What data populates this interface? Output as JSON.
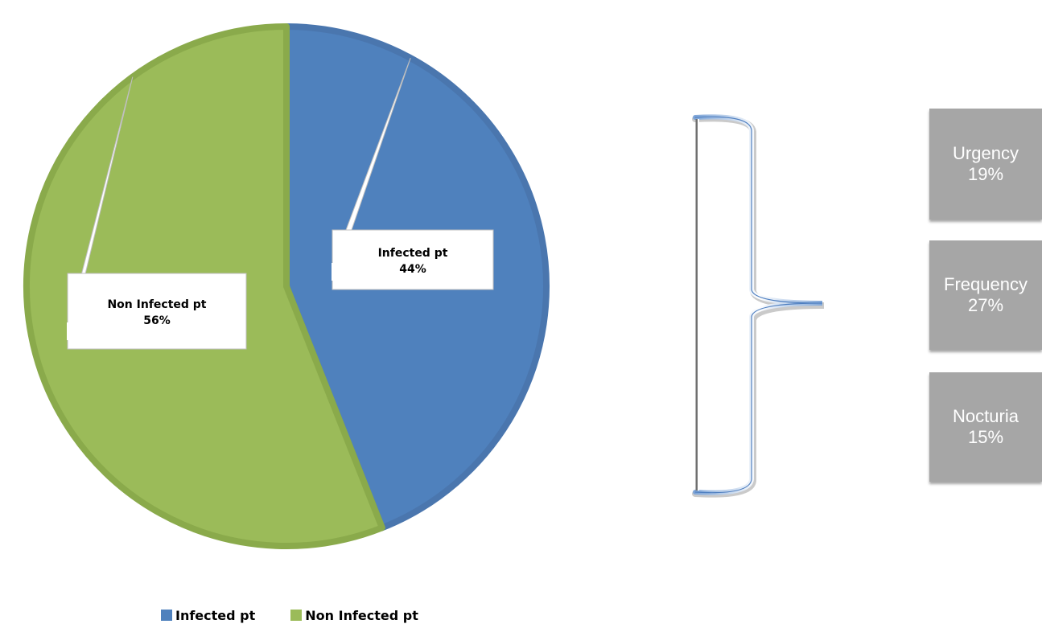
{
  "chart_data": {
    "type": "pie",
    "title": "",
    "slices": [
      {
        "label": "Infected pt",
        "value": 44,
        "display": "44%",
        "color": "#4f81bd",
        "edge": "#4a76ae"
      },
      {
        "label": "Non Infected pt",
        "value": 56,
        "display": "56%",
        "color": "#9bbb59",
        "edge": "#8aaa4b"
      }
    ],
    "legend": {
      "position": "bottom",
      "items": [
        {
          "label": "Infected pt",
          "color": "#4f81bd"
        },
        {
          "label": "Non Infected pt",
          "color": "#9bbb59"
        }
      ]
    }
  },
  "symptoms": [
    {
      "name": "Urgency",
      "percent": "19%"
    },
    {
      "name": "Frequency",
      "percent": "27%"
    },
    {
      "name": "Nocturia",
      "percent": "15%"
    }
  ],
  "colors": {
    "symptom_box": "#a6a6a6",
    "bracket_accent": "#5b87c5"
  }
}
